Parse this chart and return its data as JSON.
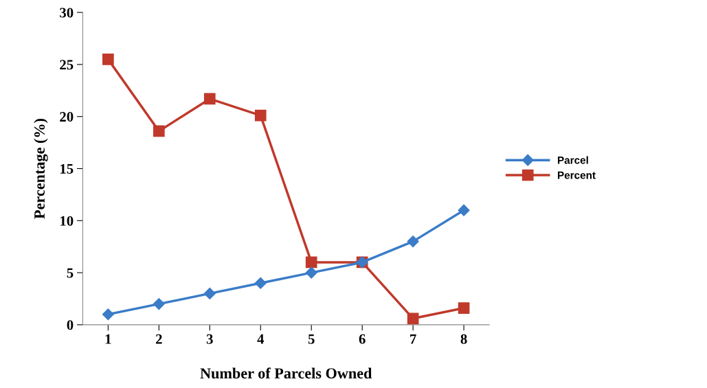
{
  "chart_data": {
    "type": "line",
    "xlabel": "Number of Parcels Owned",
    "ylabel": "Percentage (%)",
    "categories": [
      "1",
      "2",
      "3",
      "4",
      "5",
      "6",
      "7",
      "8"
    ],
    "series": [
      {
        "name": "Parcel",
        "color": "#3a7cc8",
        "marker": "diamond",
        "values": [
          1,
          2,
          3,
          4,
          5,
          6,
          8,
          11
        ]
      },
      {
        "name": "Percent",
        "color": "#c0392b",
        "marker": "square",
        "values": [
          25.5,
          18.6,
          21.7,
          20.1,
          6.0,
          6.0,
          0.6,
          1.6
        ]
      }
    ],
    "ylim": [
      0,
      30
    ],
    "yticks": [
      0,
      5,
      10,
      15,
      20,
      25,
      30
    ],
    "grid": false,
    "legend": "right",
    "line_style": "solid"
  }
}
